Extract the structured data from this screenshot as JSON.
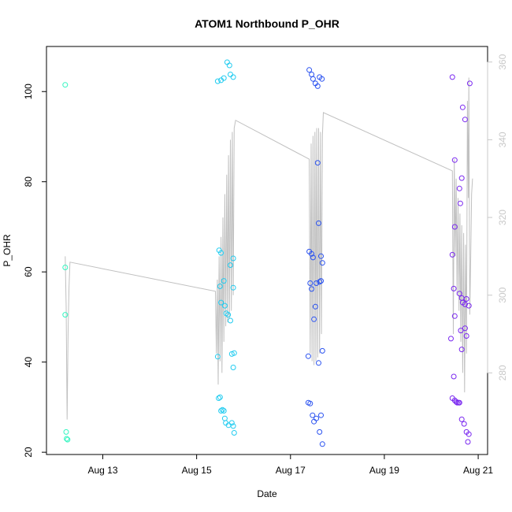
{
  "chart_data": {
    "type": "scatter",
    "title": "ATOM1 Northbound P_OHR",
    "xlabel": "Date",
    "ylabel": "P_OHR",
    "x_unit": "days (August)",
    "xlim": [
      11.8,
      21.2
    ],
    "ylim": [
      19.5,
      110
    ],
    "y2lim": [
      259,
      364
    ],
    "x_ticks": [
      {
        "value": 13,
        "label": "Aug 13"
      },
      {
        "value": 15,
        "label": "Aug 15"
      },
      {
        "value": 17,
        "label": "Aug 17"
      },
      {
        "value": 19,
        "label": "Aug 19"
      },
      {
        "value": 21,
        "label": "Aug 21"
      }
    ],
    "y_ticks": [
      20,
      40,
      60,
      80,
      100
    ],
    "y2_ticks": [
      280,
      300,
      320,
      340,
      360
    ],
    "grid": false,
    "series": [
      {
        "color": "#33f5c0",
        "points": [
          [
            12.2,
            101.5
          ],
          [
            12.2,
            61
          ],
          [
            12.2,
            50.5
          ],
          [
            12.22,
            24.5
          ],
          [
            12.23,
            23
          ],
          [
            12.25,
            22.8
          ]
        ]
      },
      {
        "color": "#22ccf0",
        "points": [
          [
            15.45,
            102.3
          ],
          [
            15.52,
            102.5
          ],
          [
            15.58,
            103
          ],
          [
            15.65,
            106.5
          ],
          [
            15.7,
            105.8
          ],
          [
            15.72,
            103.8
          ],
          [
            15.78,
            103.2
          ],
          [
            15.48,
            64.8
          ],
          [
            15.52,
            64.2
          ],
          [
            15.72,
            61.5
          ],
          [
            15.78,
            63
          ],
          [
            15.5,
            56.8
          ],
          [
            15.58,
            58
          ],
          [
            15.78,
            56.5
          ],
          [
            15.52,
            53.2
          ],
          [
            15.6,
            52.5
          ],
          [
            15.63,
            50.8
          ],
          [
            15.67,
            50.5
          ],
          [
            15.72,
            49.2
          ],
          [
            15.45,
            41.2
          ],
          [
            15.75,
            41.8
          ],
          [
            15.8,
            42
          ],
          [
            15.78,
            38.8
          ],
          [
            15.47,
            32
          ],
          [
            15.5,
            32.2
          ],
          [
            15.52,
            29.2
          ],
          [
            15.55,
            29.4
          ],
          [
            15.58,
            29.2
          ],
          [
            15.6,
            27.5
          ],
          [
            15.62,
            26.5
          ],
          [
            15.68,
            26
          ],
          [
            15.75,
            26.5
          ],
          [
            15.78,
            25.8
          ],
          [
            15.8,
            24.3
          ]
        ]
      },
      {
        "color": "#2a52f0",
        "points": [
          [
            17.4,
            104.8
          ],
          [
            17.45,
            103.8
          ],
          [
            17.48,
            102.8
          ],
          [
            17.53,
            101.8
          ],
          [
            17.58,
            101.2
          ],
          [
            17.62,
            103.2
          ],
          [
            17.67,
            102.8
          ],
          [
            17.58,
            84.2
          ],
          [
            17.6,
            70.8
          ],
          [
            17.4,
            64.5
          ],
          [
            17.45,
            64
          ],
          [
            17.48,
            63.2
          ],
          [
            17.65,
            63.5
          ],
          [
            17.68,
            62
          ],
          [
            17.42,
            57.5
          ],
          [
            17.45,
            56.2
          ],
          [
            17.55,
            57.5
          ],
          [
            17.62,
            57.8
          ],
          [
            17.65,
            58
          ],
          [
            17.53,
            52.3
          ],
          [
            17.5,
            49.5
          ],
          [
            17.38,
            41.3
          ],
          [
            17.68,
            42.5
          ],
          [
            17.6,
            39.8
          ],
          [
            17.38,
            31
          ],
          [
            17.42,
            30.8
          ],
          [
            17.47,
            28.2
          ],
          [
            17.5,
            26.8
          ],
          [
            17.55,
            27.5
          ],
          [
            17.65,
            28.2
          ],
          [
            17.62,
            24.5
          ],
          [
            17.68,
            21.8
          ]
        ]
      },
      {
        "color": "#7a28f0",
        "points": [
          [
            20.45,
            103.2
          ],
          [
            20.82,
            101.8
          ],
          [
            20.67,
            96.5
          ],
          [
            20.72,
            93.8
          ],
          [
            20.5,
            84.8
          ],
          [
            20.65,
            80.8
          ],
          [
            20.6,
            78.5
          ],
          [
            20.62,
            75.2
          ],
          [
            20.5,
            70
          ],
          [
            20.45,
            63.8
          ],
          [
            20.48,
            56.3
          ],
          [
            20.6,
            55.2
          ],
          [
            20.65,
            54.2
          ],
          [
            20.75,
            54
          ],
          [
            20.67,
            53.2
          ],
          [
            20.72,
            52.8
          ],
          [
            20.8,
            52.5
          ],
          [
            20.5,
            50.2
          ],
          [
            20.63,
            47
          ],
          [
            20.72,
            47.5
          ],
          [
            20.75,
            45.8
          ],
          [
            20.42,
            45.2
          ],
          [
            20.65,
            42.8
          ],
          [
            20.48,
            36.8
          ],
          [
            20.45,
            32
          ],
          [
            20.5,
            31.5
          ],
          [
            20.53,
            31.2
          ],
          [
            20.55,
            31
          ],
          [
            20.58,
            31
          ],
          [
            20.6,
            31
          ],
          [
            20.65,
            27.3
          ],
          [
            20.7,
            26.3
          ],
          [
            20.75,
            24.5
          ],
          [
            20.8,
            24
          ],
          [
            20.78,
            22.3
          ]
        ]
      }
    ],
    "line_series": {
      "color": "#c0c0c0",
      "axis": "right",
      "points": [
        [
          12.2,
          310
        ],
        [
          12.22,
          297
        ],
        [
          12.24,
          268
        ],
        [
          12.26,
          290
        ],
        [
          12.28,
          302
        ],
        [
          12.3,
          308.5
        ],
        [
          15.4,
          301
        ],
        [
          15.42,
          285
        ],
        [
          15.44,
          304
        ],
        [
          15.46,
          277
        ],
        [
          15.48,
          310
        ],
        [
          15.5,
          283
        ],
        [
          15.52,
          315
        ],
        [
          15.54,
          280
        ],
        [
          15.56,
          320
        ],
        [
          15.58,
          288
        ],
        [
          15.6,
          326
        ],
        [
          15.62,
          292
        ],
        [
          15.64,
          331
        ],
        [
          15.66,
          293
        ],
        [
          15.68,
          336
        ],
        [
          15.7,
          294
        ],
        [
          15.72,
          340
        ],
        [
          15.74,
          296
        ],
        [
          15.76,
          342
        ],
        [
          15.78,
          300
        ],
        [
          15.8,
          343
        ],
        [
          15.83,
          345
        ],
        [
          17.4,
          335
        ],
        [
          17.42,
          285
        ],
        [
          17.44,
          339
        ],
        [
          17.46,
          283
        ],
        [
          17.48,
          341
        ],
        [
          17.5,
          282
        ],
        [
          17.52,
          342
        ],
        [
          17.54,
          283
        ],
        [
          17.56,
          343
        ],
        [
          17.58,
          284
        ],
        [
          17.6,
          343
        ],
        [
          17.62,
          285
        ],
        [
          17.64,
          342
        ],
        [
          17.66,
          290
        ],
        [
          17.68,
          341
        ],
        [
          17.7,
          347
        ],
        [
          20.45,
          332
        ],
        [
          20.47,
          290
        ],
        [
          20.49,
          335
        ],
        [
          20.51,
          310
        ],
        [
          20.53,
          330
        ],
        [
          20.55,
          300
        ],
        [
          20.57,
          325
        ],
        [
          20.59,
          296
        ],
        [
          20.61,
          321
        ],
        [
          20.63,
          288
        ],
        [
          20.65,
          318
        ],
        [
          20.67,
          280
        ],
        [
          20.69,
          316
        ],
        [
          20.71,
          275
        ],
        [
          20.73,
          313
        ],
        [
          20.75,
          285
        ],
        [
          20.77,
          350
        ],
        [
          20.79,
          325
        ],
        [
          20.8,
          356
        ],
        [
          20.82,
          295
        ],
        [
          20.84,
          310
        ],
        [
          20.86,
          326
        ],
        [
          20.88,
          330
        ]
      ]
    }
  }
}
